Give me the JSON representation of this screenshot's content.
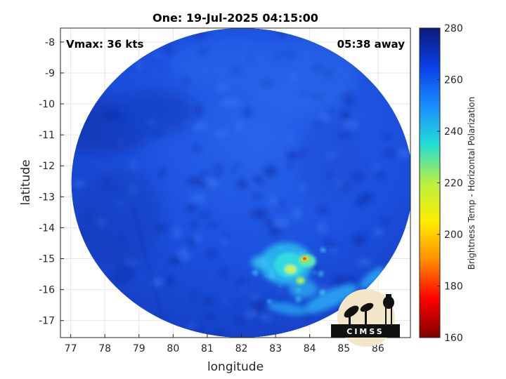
{
  "chart_data": {
    "type": "heatmap",
    "title": "One: 19-Jul-2025 04:15:00",
    "xlabel": "longitude",
    "ylabel": "latitude",
    "xlim": [
      76.7,
      86.95
    ],
    "ylim": [
      -17.55,
      -7.55
    ],
    "xticks": [
      77,
      78,
      79,
      80,
      81,
      82,
      83,
      84,
      85,
      86
    ],
    "yticks": [
      -8,
      -9,
      -10,
      -11,
      -12,
      -13,
      -14,
      -15,
      -16,
      -17
    ],
    "grid": true,
    "swath_center": [
      82.02,
      -12.55
    ],
    "swath_radius_deg": 5.0,
    "annotations": {
      "top_left": "Vmax: 36 kts",
      "top_right": "05:38 away"
    },
    "colorbar": {
      "label": "Brightness Temp - Horizontal Polarization",
      "min": 160,
      "max": 280,
      "ticks": [
        280,
        260,
        240,
        220,
        200,
        180,
        160
      ],
      "colormap": "parula-jet"
    },
    "features": [
      {
        "name": "convective core",
        "lon": 83.4,
        "lat": -15.3,
        "min_temp": 200
      },
      {
        "name": "hot spot",
        "lon": 83.85,
        "lat": -15.0,
        "min_temp": 190
      },
      {
        "name": "southern rain band",
        "lon": 84.6,
        "lat": -16.3,
        "min_temp": 240
      }
    ]
  },
  "logo": {
    "text": "CIMSS"
  }
}
